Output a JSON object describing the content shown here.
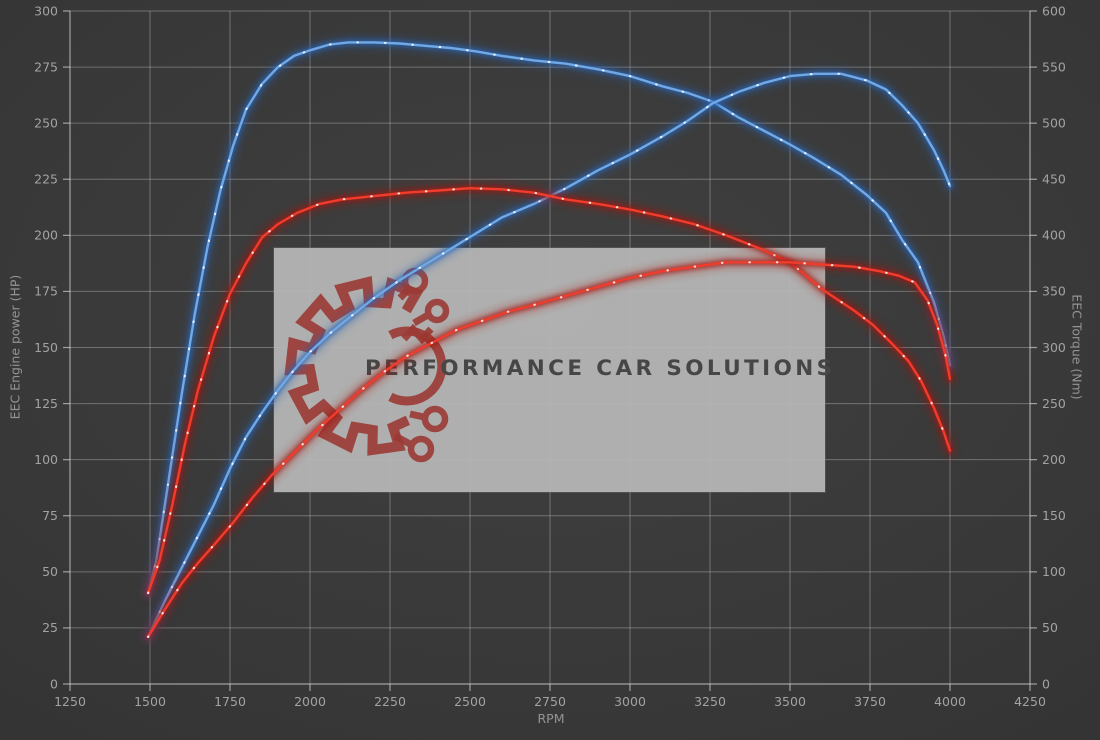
{
  "watermark": {
    "text": "PERFORMANCE CAR SOLUTIONS",
    "logo": "gear-circuit-logo",
    "box_color": "#b7b7b7",
    "logo_color": "#9c3a34",
    "text_color": "#464646"
  },
  "chart_data": {
    "type": "line",
    "title": "",
    "xlabel": "RPM",
    "grid": true,
    "legend": "none",
    "x_range": [
      1250,
      4250
    ],
    "x_ticks": [
      1250,
      1500,
      1750,
      2000,
      2250,
      2500,
      2750,
      3000,
      3250,
      3500,
      3750,
      4000,
      4250
    ],
    "left_axis": {
      "label": "EEC Engine power (HP)",
      "range": [
        0,
        300
      ],
      "ticks": [
        0,
        25,
        50,
        75,
        100,
        125,
        150,
        175,
        200,
        225,
        250,
        275,
        300
      ]
    },
    "right_axis": {
      "label": "EEC Torque (Nm)",
      "range": [
        0,
        600
      ],
      "ticks": [
        0,
        50,
        100,
        150,
        200,
        250,
        300,
        350,
        400,
        450,
        500,
        550,
        600
      ]
    },
    "series": [
      {
        "name": "torque-blue",
        "axis": "right",
        "unit": "Nm",
        "color_core": "#70a9e6",
        "color_glow": "#2a65b5",
        "peak": {
          "rpm": 2150,
          "value": 572
        },
        "points": [
          [
            1494,
            81
          ],
          [
            1520,
            110
          ],
          [
            1560,
            185
          ],
          [
            1600,
            260
          ],
          [
            1640,
            330
          ],
          [
            1680,
            390
          ],
          [
            1720,
            440
          ],
          [
            1760,
            480
          ],
          [
            1800,
            512
          ],
          [
            1850,
            535
          ],
          [
            1900,
            550
          ],
          [
            1950,
            560
          ],
          [
            2000,
            565
          ],
          [
            2060,
            570
          ],
          [
            2120,
            572
          ],
          [
            2200,
            572
          ],
          [
            2280,
            571
          ],
          [
            2360,
            569
          ],
          [
            2440,
            567
          ],
          [
            2520,
            564
          ],
          [
            2600,
            560
          ],
          [
            2700,
            556
          ],
          [
            2800,
            553
          ],
          [
            2900,
            548
          ],
          [
            3000,
            542
          ],
          [
            3100,
            533
          ],
          [
            3180,
            527
          ],
          [
            3260,
            519
          ],
          [
            3340,
            505
          ],
          [
            3420,
            493
          ],
          [
            3500,
            481
          ],
          [
            3580,
            468
          ],
          [
            3660,
            454
          ],
          [
            3740,
            436
          ],
          [
            3800,
            420
          ],
          [
            3850,
            396
          ],
          [
            3900,
            376
          ],
          [
            3950,
            340
          ],
          [
            3980,
            310
          ],
          [
            4000,
            284
          ]
        ]
      },
      {
        "name": "power-blue",
        "axis": "left",
        "unit": "HP",
        "color_core": "#70a9e6",
        "color_glow": "#2a65b5",
        "peak": {
          "rpm": 3600,
          "value": 272
        },
        "points": [
          [
            1494,
            21
          ],
          [
            1550,
            38
          ],
          [
            1600,
            52
          ],
          [
            1650,
            66
          ],
          [
            1700,
            80
          ],
          [
            1750,
            96
          ],
          [
            1800,
            110
          ],
          [
            1850,
            121
          ],
          [
            1900,
            131
          ],
          [
            1950,
            140
          ],
          [
            2000,
            148
          ],
          [
            2060,
            156
          ],
          [
            2120,
            163
          ],
          [
            2200,
            172
          ],
          [
            2280,
            180
          ],
          [
            2360,
            187
          ],
          [
            2440,
            194
          ],
          [
            2520,
            201
          ],
          [
            2600,
            208
          ],
          [
            2700,
            214
          ],
          [
            2800,
            221
          ],
          [
            2900,
            229
          ],
          [
            3000,
            236
          ],
          [
            3100,
            244
          ],
          [
            3180,
            251
          ],
          [
            3260,
            259
          ],
          [
            3340,
            264
          ],
          [
            3420,
            268
          ],
          [
            3500,
            271
          ],
          [
            3580,
            272
          ],
          [
            3660,
            272
          ],
          [
            3740,
            269
          ],
          [
            3800,
            265
          ],
          [
            3850,
            258
          ],
          [
            3900,
            250
          ],
          [
            3950,
            238
          ],
          [
            3980,
            229
          ],
          [
            4000,
            222
          ]
        ]
      },
      {
        "name": "torque-red",
        "axis": "right",
        "unit": "Nm",
        "color_core": "#f03c2c",
        "color_glow": "#a51910",
        "peak": {
          "rpm": 2550,
          "value": 442
        },
        "points": [
          [
            1494,
            81
          ],
          [
            1530,
            110
          ],
          [
            1570,
            160
          ],
          [
            1610,
            215
          ],
          [
            1650,
            262
          ],
          [
            1700,
            310
          ],
          [
            1750,
            348
          ],
          [
            1800,
            375
          ],
          [
            1850,
            398
          ],
          [
            1900,
            410
          ],
          [
            1960,
            420
          ],
          [
            2030,
            428
          ],
          [
            2100,
            432
          ],
          [
            2200,
            435
          ],
          [
            2300,
            438
          ],
          [
            2400,
            440
          ],
          [
            2500,
            442
          ],
          [
            2600,
            441
          ],
          [
            2700,
            438
          ],
          [
            2800,
            432
          ],
          [
            2900,
            428
          ],
          [
            3000,
            423
          ],
          [
            3100,
            417
          ],
          [
            3200,
            410
          ],
          [
            3300,
            400
          ],
          [
            3400,
            389
          ],
          [
            3500,
            376
          ],
          [
            3600,
            352
          ],
          [
            3700,
            333
          ],
          [
            3760,
            320
          ],
          [
            3820,
            303
          ],
          [
            3870,
            288
          ],
          [
            3910,
            270
          ],
          [
            3950,
            246
          ],
          [
            3980,
            225
          ],
          [
            4000,
            208
          ]
        ]
      },
      {
        "name": "power-red",
        "axis": "left",
        "unit": "HP",
        "color_core": "#f03c2c",
        "color_glow": "#a51910",
        "peak": {
          "rpm": 3400,
          "value": 188
        },
        "points": [
          [
            1494,
            21
          ],
          [
            1550,
            34
          ],
          [
            1600,
            45
          ],
          [
            1650,
            54
          ],
          [
            1700,
            62
          ],
          [
            1760,
            72
          ],
          [
            1820,
            83
          ],
          [
            1880,
            93
          ],
          [
            1950,
            103
          ],
          [
            2020,
            113
          ],
          [
            2090,
            122
          ],
          [
            2160,
            131
          ],
          [
            2230,
            139
          ],
          [
            2300,
            146
          ],
          [
            2380,
            152
          ],
          [
            2460,
            158
          ],
          [
            2540,
            162
          ],
          [
            2620,
            166
          ],
          [
            2700,
            169
          ],
          [
            2800,
            173
          ],
          [
            2900,
            177
          ],
          [
            3000,
            181
          ],
          [
            3100,
            184
          ],
          [
            3200,
            186
          ],
          [
            3300,
            188
          ],
          [
            3400,
            188
          ],
          [
            3500,
            188
          ],
          [
            3600,
            187
          ],
          [
            3700,
            186
          ],
          [
            3780,
            184
          ],
          [
            3840,
            182
          ],
          [
            3890,
            179
          ],
          [
            3930,
            171
          ],
          [
            3960,
            160
          ],
          [
            3985,
            147
          ],
          [
            4000,
            136
          ]
        ]
      }
    ]
  }
}
